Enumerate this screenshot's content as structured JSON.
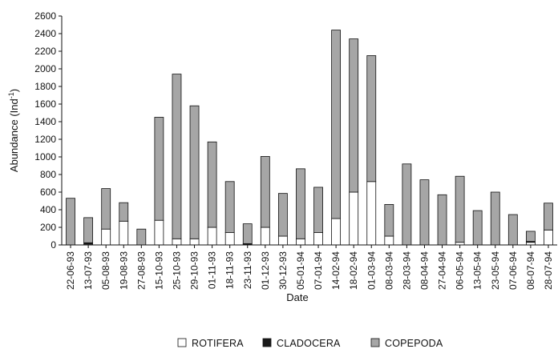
{
  "chart_data": {
    "type": "bar",
    "stacked": true,
    "title": "",
    "xlabel": "Date",
    "ylabel": "Abundance (Ind",
    "ylabel_superscript": "-1",
    "ylabel_suffix": ")",
    "ylim": [
      0,
      2600
    ],
    "yticks": [
      0,
      200,
      400,
      600,
      800,
      1000,
      1200,
      1400,
      1600,
      1800,
      2000,
      2200,
      2400,
      2600
    ],
    "grid": false,
    "legend_position": "bottom",
    "categories": [
      "22-06-93",
      "13-07-93",
      "05-08-93",
      "19-08-93",
      "27-08-93",
      "15-10-93",
      "25-10-93",
      "29-10-93",
      "01-11-93",
      "18-11-93",
      "23-11-93",
      "01-12-93",
      "30-12-93",
      "05-01-94",
      "07-01-94",
      "14-02-94",
      "18-02-94",
      "01-03-94",
      "08-03-94",
      "28-03-94",
      "08-04-94",
      "27-04-94",
      "06-05-94",
      "13-05-94",
      "23-05-94",
      "07-06-94",
      "08-07-94",
      "28-07-94"
    ],
    "series": [
      {
        "name": "ROTIFERA",
        "color": "#ffffff",
        "values": [
          0,
          10,
          180,
          270,
          0,
          280,
          70,
          70,
          200,
          140,
          5,
          200,
          100,
          70,
          140,
          300,
          600,
          720,
          100,
          0,
          0,
          0,
          30,
          0,
          0,
          0,
          30,
          170
        ]
      },
      {
        "name": "CLADOCERA",
        "color": "#1a1a1a",
        "values": [
          0,
          15,
          0,
          0,
          0,
          0,
          0,
          0,
          0,
          0,
          10,
          0,
          0,
          0,
          0,
          0,
          0,
          0,
          0,
          0,
          0,
          0,
          0,
          0,
          0,
          0,
          10,
          0
        ]
      },
      {
        "name": "COPEPODA",
        "color": "#a6a6a6",
        "values": [
          530,
          285,
          460,
          210,
          180,
          1170,
          1870,
          1510,
          970,
          580,
          225,
          805,
          485,
          795,
          515,
          2140,
          1740,
          1430,
          360,
          920,
          740,
          570,
          750,
          390,
          600,
          345,
          115,
          305
        ]
      }
    ]
  }
}
